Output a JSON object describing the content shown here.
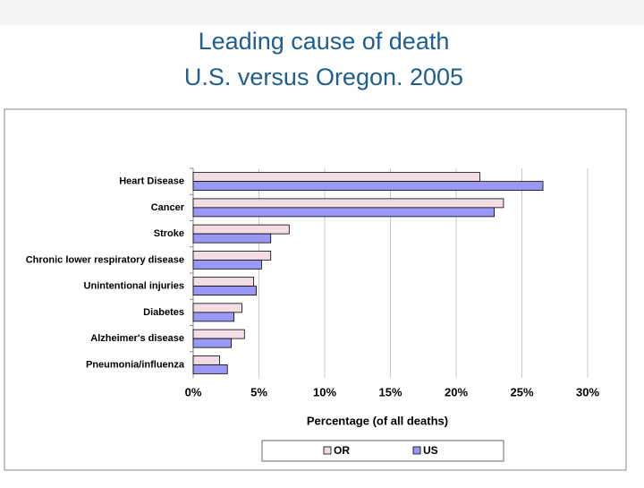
{
  "chart_data": {
    "type": "bar",
    "orientation": "horizontal",
    "title": "Leading cause of death",
    "subtitle": "U.S. versus Oregon. 2005",
    "x_label": "Percentage (of all deaths)",
    "categories": [
      "Heart Disease",
      "Cancer",
      "Stroke",
      "Chronic lower respiratory disease",
      "Unintentional injuries",
      "Diabetes",
      "Alzheimer's disease",
      "Pneumonia/influenza"
    ],
    "series": [
      {
        "name": "OR",
        "color": "#f3dde5",
        "values": [
          21.8,
          23.6,
          7.3,
          5.9,
          4.6,
          3.7,
          3.9,
          2.0
        ]
      },
      {
        "name": "US",
        "color": "#9999f5",
        "values": [
          26.6,
          22.9,
          5.9,
          5.2,
          4.8,
          3.1,
          2.9,
          2.6
        ]
      }
    ],
    "xlim": [
      0,
      30
    ],
    "xticks": [
      {
        "value": 0,
        "label": "0%"
      },
      {
        "value": 5,
        "label": "5%"
      },
      {
        "value": 10,
        "label": "10%"
      },
      {
        "value": 15,
        "label": "15%"
      },
      {
        "value": 20,
        "label": "20%"
      },
      {
        "value": 25,
        "label": "25%"
      },
      {
        "value": 30,
        "label": "30%"
      }
    ],
    "grid": true
  }
}
